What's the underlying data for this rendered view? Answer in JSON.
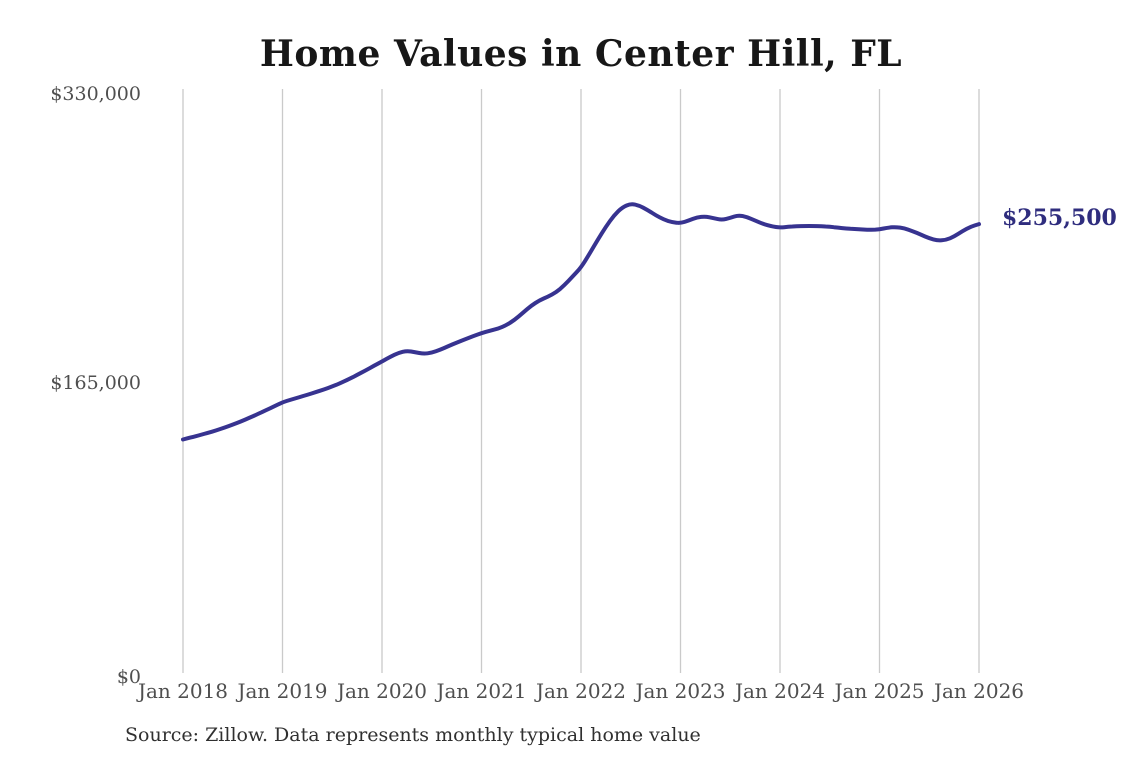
{
  "page": {
    "title": "Home Values in Center Hill, FL",
    "source_note": "Source: Zillow. Data represents monthly typical home value"
  },
  "chart_data": {
    "type": "line",
    "title": "Home Values in Center Hill, FL",
    "series_name": "Monthly typical home value",
    "unit": "USD",
    "x_interval": "monthly",
    "x_start": "2018-01",
    "x_end": "2026-01",
    "x_tick_labels": [
      "Jan 2018",
      "Jan 2019",
      "Jan 2020",
      "Jan 2021",
      "Jan 2022",
      "Jan 2023",
      "Jan 2024",
      "Jan 2025",
      "Jan 2026"
    ],
    "y_ticks": [
      0,
      165000,
      330000
    ],
    "y_tick_labels": [
      "$0",
      "$165,000",
      "$330,000"
    ],
    "ylim": [
      0,
      330000
    ],
    "grid": "vertical-only",
    "legend": "none",
    "end_label": "$255,500",
    "last_value": 255500,
    "values": [
      134000,
      135200,
      136400,
      137700,
      139100,
      140700,
      142400,
      144200,
      146200,
      148300,
      150500,
      152700,
      155000,
      156400,
      157800,
      159200,
      160700,
      162200,
      163900,
      165800,
      168000,
      170400,
      172900,
      175500,
      178000,
      180600,
      182900,
      184000,
      183200,
      182300,
      182900,
      184600,
      186600,
      188600,
      190500,
      192300,
      194000,
      195300,
      196500,
      198500,
      201500,
      205500,
      209500,
      212500,
      214500,
      217000,
      221000,
      226000,
      231000,
      238500,
      246500,
      254000,
      260500,
      265000,
      267000,
      266000,
      263500,
      260500,
      258000,
      256500,
      256000,
      257500,
      259300,
      259800,
      258800,
      257800,
      259000,
      260500,
      259500,
      257500,
      255500,
      254200,
      253500,
      254000,
      254300,
      254400,
      254400,
      254300,
      254000,
      253500,
      253000,
      252700,
      252400,
      252300,
      252500,
      253500,
      253800,
      253200,
      251500,
      249500,
      247500,
      246200,
      246500,
      248500,
      251500,
      254000,
      255500
    ],
    "colors": {
      "line": "#373390",
      "end_label_text": "#2f2d7e",
      "gridline": "#cacaca",
      "axis_text": "#4f4f4f",
      "title_text": "#171717",
      "source_text": "#303030",
      "background": "#ffffff"
    }
  }
}
